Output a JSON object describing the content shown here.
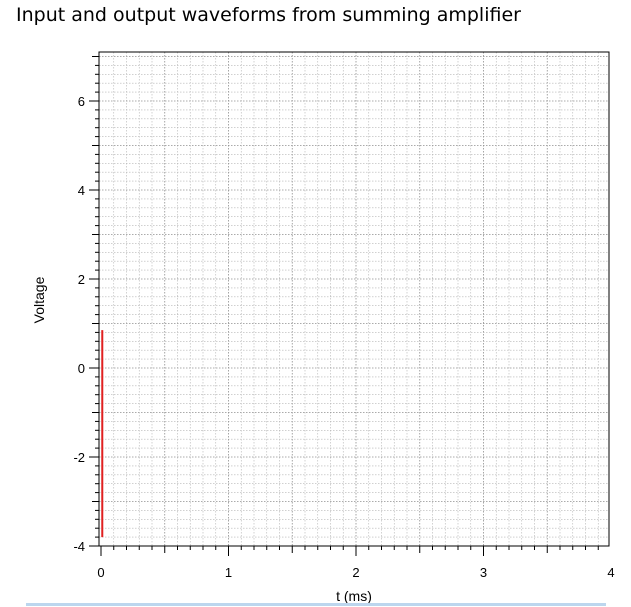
{
  "title": "Input and output waveforms from summing amplifier",
  "chart_data": {
    "type": "line",
    "xlabel": "t (ms)",
    "ylabel": "Voltage",
    "xlim": [
      0,
      4
    ],
    "ylim": [
      -4,
      7
    ],
    "x_ticks": [
      0,
      1,
      2,
      3,
      4
    ],
    "y_ticks": [
      -4,
      -2,
      0,
      2,
      4,
      6
    ],
    "grid": true,
    "series": [
      {
        "color": "#e02020",
        "x": [
          0.01,
          0.01
        ],
        "y": [
          -3.8,
          0.85
        ]
      }
    ]
  }
}
